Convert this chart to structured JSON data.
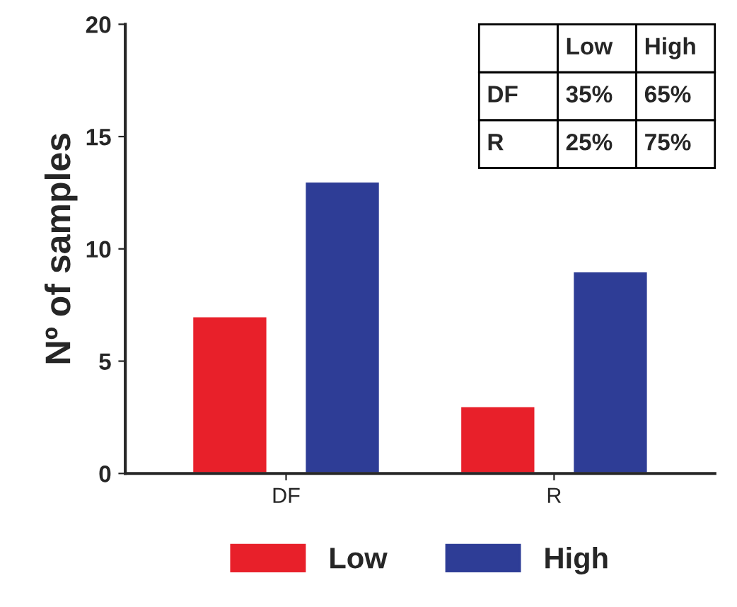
{
  "chart_data": {
    "type": "bar",
    "ylabel": "Nº of samples",
    "categories": [
      "DF",
      "R"
    ],
    "series": [
      {
        "name": "Low",
        "color": "#e8202a",
        "values": [
          7,
          3
        ]
      },
      {
        "name": "High",
        "color": "#2e3d96",
        "values": [
          13,
          9
        ]
      }
    ],
    "ylim": [
      0,
      20
    ],
    "yticks": [
      0,
      5,
      10,
      15,
      20
    ],
    "grid": false,
    "legend": "bottom",
    "annotations": [
      "Low",
      "High",
      "DF",
      "35%",
      "65%",
      "R",
      "25%",
      "75%"
    ]
  }
}
